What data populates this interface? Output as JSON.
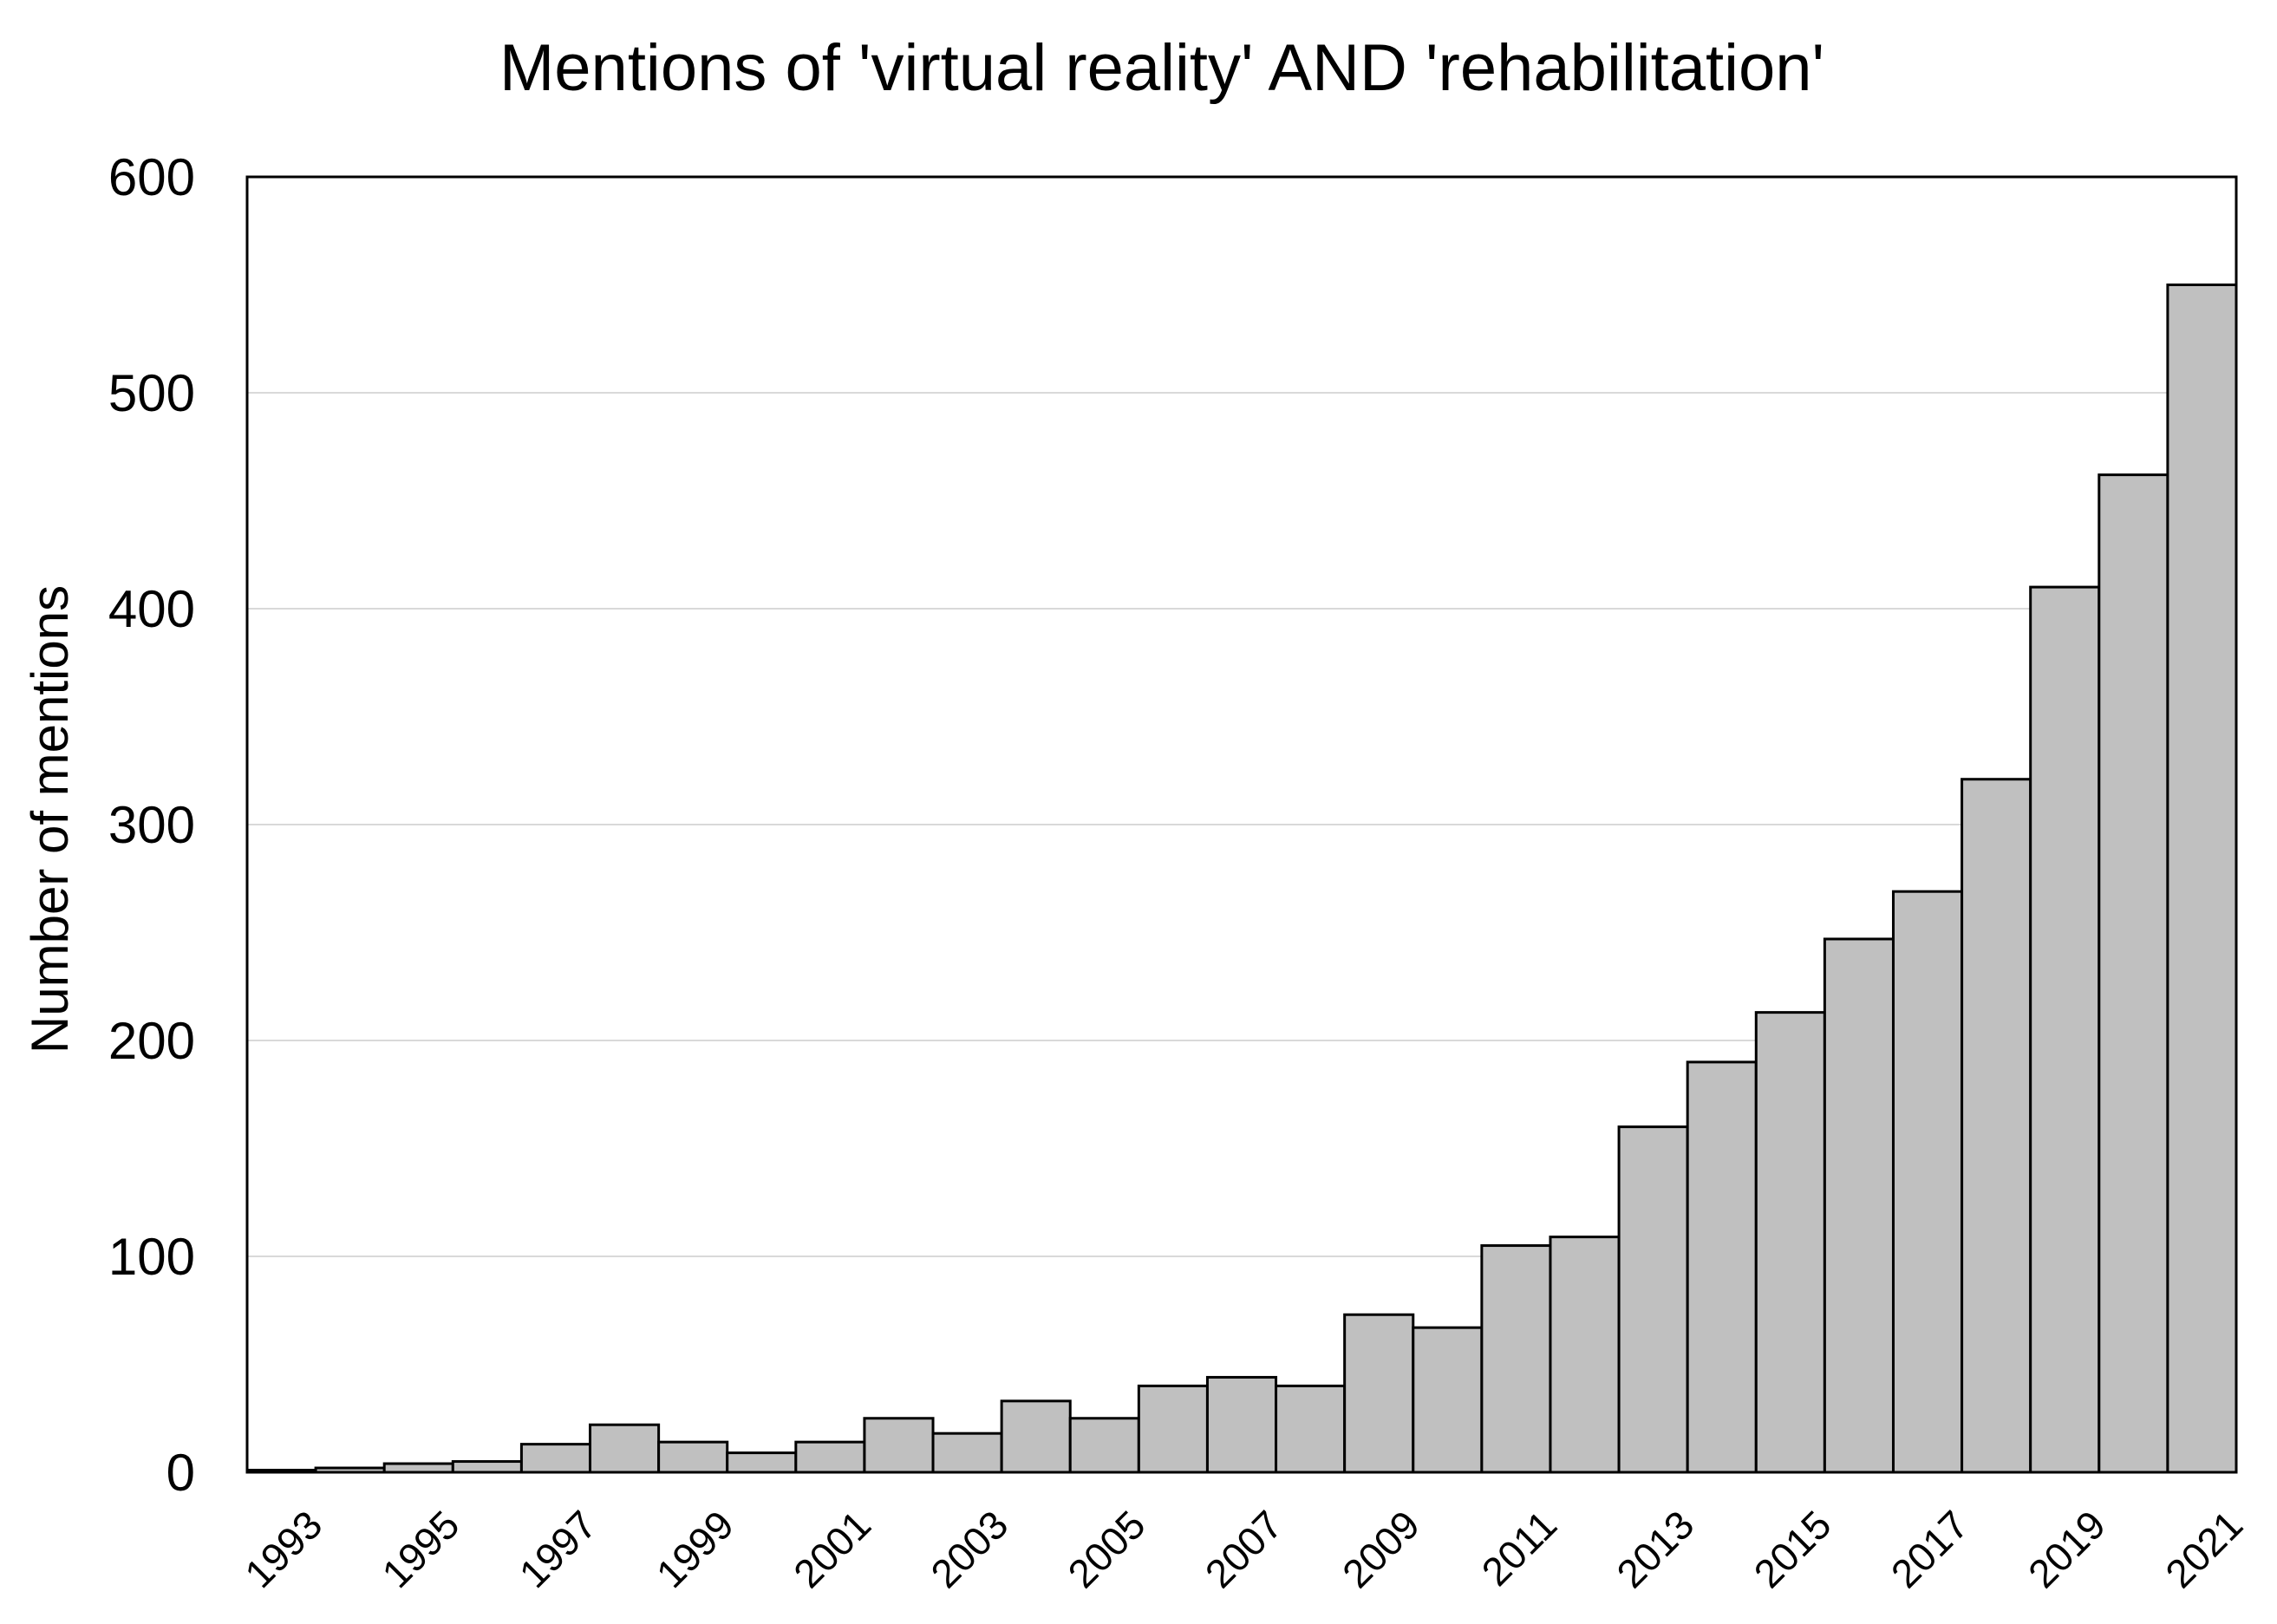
{
  "chart_data": {
    "type": "bar",
    "title": "Mentions of 'virtual reality' AND 'rehabilitation'",
    "xlabel": "",
    "ylabel": "Number of mentions",
    "ylim": [
      0,
      600
    ],
    "yticks": [
      "0",
      "100",
      "200",
      "300",
      "400",
      "500",
      "600"
    ],
    "categories": [
      "1993",
      "1994",
      "1995",
      "1996",
      "1997",
      "1998",
      "1999",
      "2000",
      "2001",
      "2002",
      "2003",
      "2004",
      "2005",
      "2006",
      "2007",
      "2008",
      "2009",
      "2010",
      "2011",
      "2012",
      "2013",
      "2014",
      "2015",
      "2016",
      "2017",
      "2018",
      "2019",
      "2020",
      "2021"
    ],
    "xtick_labels": [
      "1993",
      "1995",
      "1997",
      "1999",
      "2001",
      "2003",
      "2005",
      "2007",
      "2009",
      "2011",
      "2013",
      "2015",
      "2017",
      "2019",
      "2021"
    ],
    "values": [
      1,
      2,
      4,
      5,
      13,
      22,
      14,
      9,
      14,
      25,
      18,
      33,
      25,
      40,
      44,
      40,
      73,
      67,
      105,
      109,
      160,
      190,
      213,
      247,
      269,
      321,
      410,
      462,
      550
    ],
    "bar_color": "#c0c0c0",
    "edge_color": "#000000",
    "grid_color": "#d9d9d9",
    "grid": true,
    "legend": "none"
  }
}
